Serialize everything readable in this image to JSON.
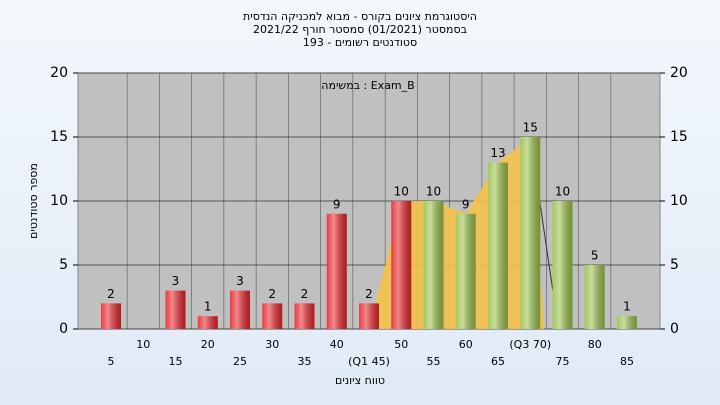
{
  "chart_data": {
    "type": "bar",
    "title": [
      "היסטוגרמת ציונים בקורס - מבוא למכניקה הנדסית",
      "בסמסטר (01/2021) סמסטר חורף 2021/22",
      "סטודנטים רשומים - 193"
    ],
    "annotation": "במשימה : Exam_B",
    "x_label": "טווח ציונים",
    "y_label": "מספר סטודנטים",
    "categories": [
      "5",
      "10",
      "15",
      "20",
      "25",
      "30",
      "35",
      "40",
      "(Q1 45)",
      "50",
      "55",
      "60",
      "65",
      "(Q3 70)",
      "75",
      "80",
      "85"
    ],
    "values": [
      2,
      0,
      3,
      1,
      3,
      2,
      2,
      9,
      2,
      10,
      10,
      9,
      13,
      15,
      10,
      5,
      1
    ],
    "value_labels": [
      "2",
      null,
      "3",
      "1",
      "3",
      "2",
      "2",
      "9",
      "2",
      "10",
      "10",
      "9",
      "13",
      "15",
      "10",
      "5",
      "1"
    ],
    "colors": [
      "#e8262b",
      "#e8262b",
      "#e8262b",
      "#e8262b",
      "#e8262b",
      "#e8262b",
      "#e8262b",
      "#e8262b",
      "#e8262b",
      "#e8262b",
      "#9bc24c",
      "#9bc24c",
      "#9bc24c",
      "#9bc24c",
      "#9bc24c",
      "#9bc24c",
      "#9bc24c"
    ],
    "ylim": [
      0,
      20
    ],
    "yticks": [
      0,
      5,
      10,
      15,
      20
    ],
    "y2lim": [
      0,
      20
    ],
    "y2ticks": [
      0,
      5,
      10,
      15,
      20
    ],
    "grid": true
  }
}
